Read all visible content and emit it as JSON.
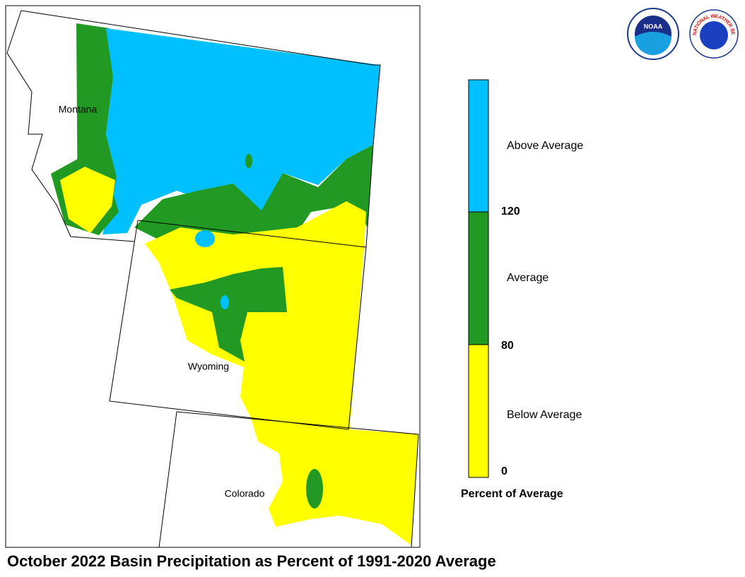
{
  "map": {
    "title": "October 2022 Basin Precipitation as Percent of 1991-2020 Average",
    "states": [
      {
        "label": "Montana"
      },
      {
        "label": "Wyoming"
      },
      {
        "label": "Colorado"
      }
    ],
    "legend": {
      "title": "Percent of Average",
      "classes": [
        {
          "label": "Above Average",
          "color": "#00c0ff"
        },
        {
          "label": "Average",
          "color": "#229922"
        },
        {
          "label": "Below Average",
          "color": "#ffff00"
        }
      ],
      "breaks": [
        120,
        80,
        0
      ]
    }
  },
  "logos": {
    "noaa": "NOAA",
    "nws": "NATIONAL WEATHER SERVICE"
  }
}
